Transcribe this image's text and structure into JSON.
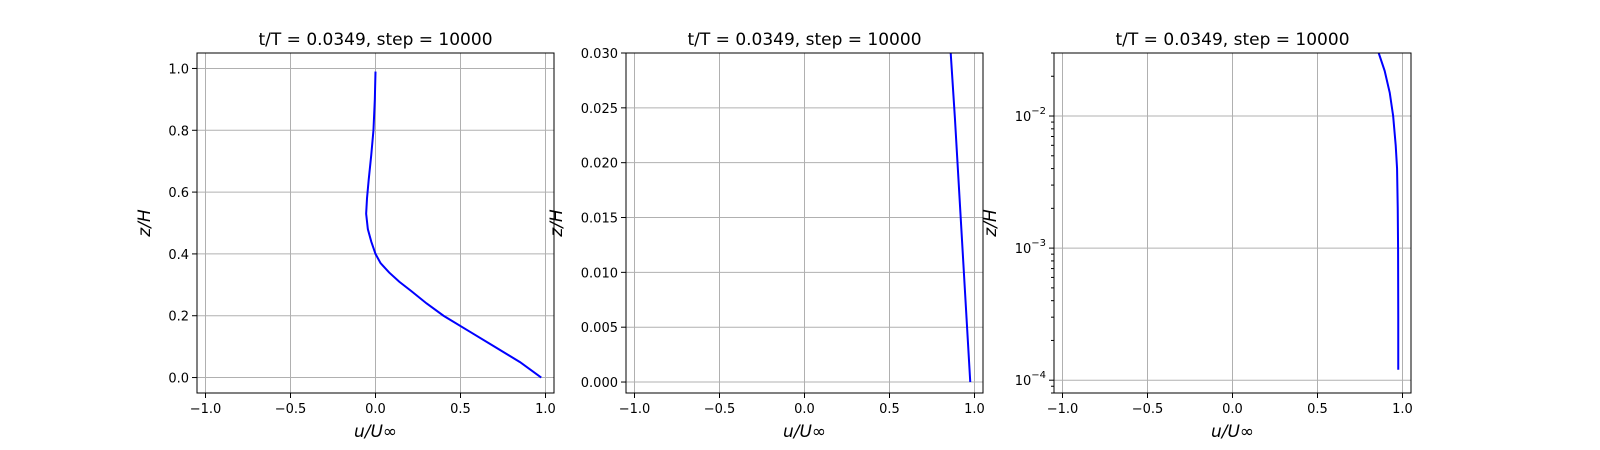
{
  "chart_data": [
    {
      "type": "line",
      "title": "t/T = 0.0349, step = 10000",
      "xlabel": "u/U∞",
      "ylabel": "z/H",
      "xlim": [
        -1.05,
        1.05
      ],
      "ylim": [
        -0.05,
        1.05
      ],
      "yscale": "linear",
      "grid": true,
      "xticks": [
        -1.0,
        -0.5,
        0.0,
        0.5,
        1.0
      ],
      "xtick_labels": [
        "−1.0",
        "−0.5",
        "0.0",
        "0.5",
        "1.0"
      ],
      "yticks": [
        0.0,
        0.2,
        0.4,
        0.6,
        0.8,
        1.0
      ],
      "ytick_labels": [
        "0.0",
        "0.2",
        "0.4",
        "0.6",
        "0.8",
        "1.0"
      ],
      "series": [
        {
          "color": "#0000ff",
          "x": [
            0.975,
            0.85,
            0.7,
            0.55,
            0.4,
            0.3,
            0.21,
            0.14,
            0.08,
            0.03,
            0.0,
            -0.025,
            -0.045,
            -0.055,
            -0.05,
            -0.04,
            -0.025,
            -0.012,
            -0.004,
            0.0
          ],
          "y": [
            0.0,
            0.05,
            0.1,
            0.15,
            0.2,
            0.24,
            0.28,
            0.31,
            0.34,
            0.37,
            0.4,
            0.44,
            0.48,
            0.53,
            0.58,
            0.64,
            0.72,
            0.8,
            0.9,
            0.99
          ]
        }
      ]
    },
    {
      "type": "line",
      "title": "t/T = 0.0349, step = 10000",
      "xlabel": "u/U∞",
      "ylabel": "z/H",
      "xlim": [
        -1.05,
        1.05
      ],
      "ylim": [
        -0.001,
        0.03
      ],
      "yscale": "linear",
      "grid": true,
      "xticks": [
        -1.0,
        -0.5,
        0.0,
        0.5,
        1.0
      ],
      "xtick_labels": [
        "−1.0",
        "−0.5",
        "0.0",
        "0.5",
        "1.0"
      ],
      "yticks": [
        0.0,
        0.005,
        0.01,
        0.015,
        0.02,
        0.025,
        0.03
      ],
      "ytick_labels": [
        "0.000",
        "0.005",
        "0.010",
        "0.015",
        "0.020",
        "0.025",
        "0.030"
      ],
      "series": [
        {
          "color": "#0000ff",
          "x": [
            0.975,
            0.945,
            0.915,
            0.885,
            0.86
          ],
          "y": [
            0.0,
            0.008,
            0.016,
            0.024,
            0.03
          ]
        }
      ]
    },
    {
      "type": "line",
      "title": "t/T = 0.0349, step = 10000",
      "xlabel": "u/U∞",
      "ylabel": "z/H",
      "xlim": [
        -1.05,
        1.05
      ],
      "ylim": [
        8e-05,
        0.03
      ],
      "yscale": "log",
      "grid": true,
      "xticks": [
        -1.0,
        -0.5,
        0.0,
        0.5,
        1.0
      ],
      "xtick_labels": [
        "−1.0",
        "−0.5",
        "0.0",
        "0.5",
        "1.0"
      ],
      "yticks": [
        0.0001,
        0.001,
        0.01
      ],
      "ytick_labels": [
        "10",
        "10",
        "10"
      ],
      "ytick_exponents": [
        "−4",
        "−3",
        "−2"
      ],
      "series": [
        {
          "color": "#0000ff",
          "x": [
            0.975,
            0.975,
            0.974,
            0.972,
            0.968,
            0.96,
            0.945,
            0.925,
            0.895,
            0.86
          ],
          "y": [
            0.00012,
            0.0003,
            0.001,
            0.002,
            0.004,
            0.006,
            0.01,
            0.015,
            0.022,
            0.03
          ]
        }
      ]
    }
  ]
}
